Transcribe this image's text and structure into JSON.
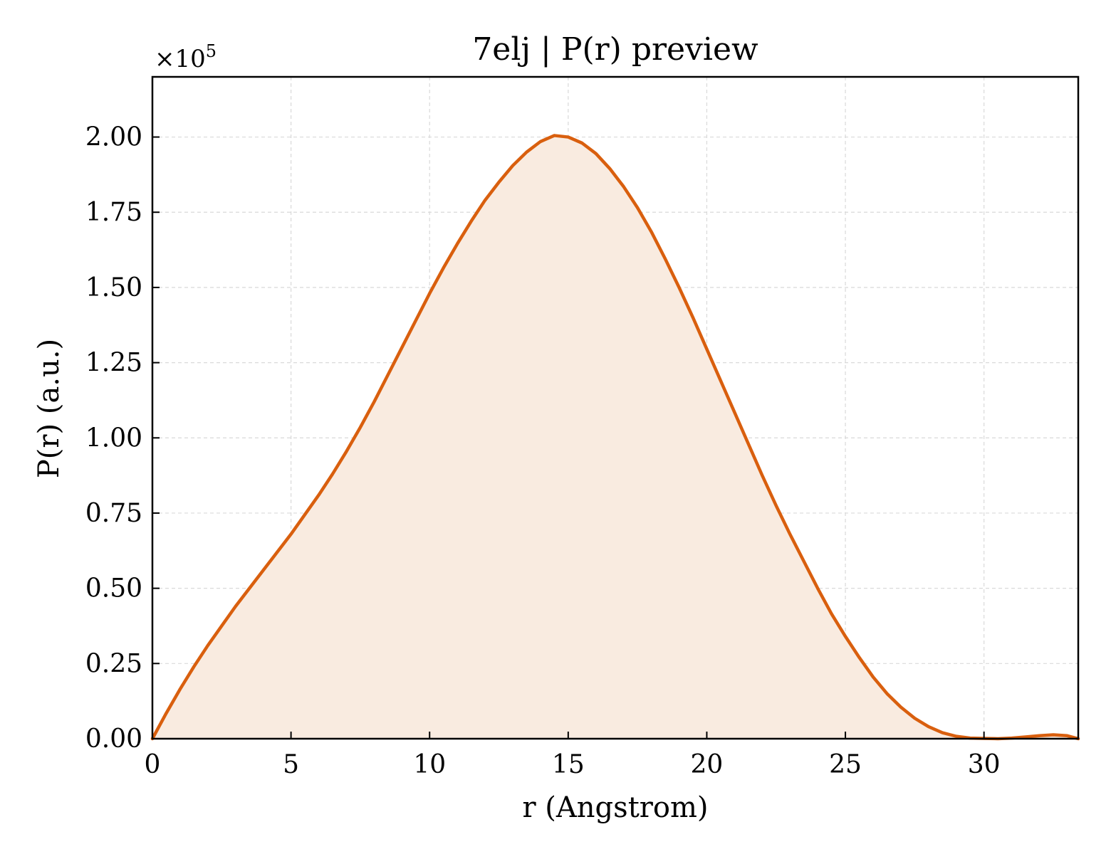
{
  "chart_data": {
    "type": "area",
    "title": "7elj | P(r) preview",
    "xlabel": "r (Angstrom)",
    "ylabel": "P(r) (a.u.)",
    "y_multiplier": "×10",
    "y_multiplier_exp": "5",
    "xlim": [
      0,
      33.4
    ],
    "ylim": [
      0,
      2.2
    ],
    "x_ticks": [
      {
        "value": 0,
        "label": "0"
      },
      {
        "value": 5,
        "label": "5"
      },
      {
        "value": 10,
        "label": "10"
      },
      {
        "value": 15,
        "label": "15"
      },
      {
        "value": 20,
        "label": "20"
      },
      {
        "value": 25,
        "label": "25"
      },
      {
        "value": 30,
        "label": "30"
      }
    ],
    "y_ticks": [
      {
        "value": 0.0,
        "label": "0.00"
      },
      {
        "value": 0.25,
        "label": "0.25"
      },
      {
        "value": 0.5,
        "label": "0.50"
      },
      {
        "value": 0.75,
        "label": "0.75"
      },
      {
        "value": 1.0,
        "label": "1.00"
      },
      {
        "value": 1.25,
        "label": "1.25"
      },
      {
        "value": 1.5,
        "label": "1.50"
      },
      {
        "value": 1.75,
        "label": "1.75"
      },
      {
        "value": 2.0,
        "label": "2.00"
      }
    ],
    "grid": true,
    "colors": {
      "line": "#d95f0e",
      "fill": "#f9ebe0",
      "grid": "#d9d9d9"
    },
    "series": [
      {
        "x": [
          0,
          0.5,
          1,
          1.5,
          2,
          2.5,
          3,
          3.5,
          4,
          4.5,
          5,
          5.5,
          6,
          6.5,
          7,
          7.5,
          8,
          8.5,
          9,
          9.5,
          10,
          10.5,
          11,
          11.5,
          12,
          12.5,
          13,
          13.5,
          14,
          14.5,
          15,
          15.5,
          16,
          16.5,
          17,
          17.5,
          18,
          18.5,
          19,
          19.5,
          20,
          20.5,
          21,
          21.5,
          22,
          22.5,
          23,
          23.5,
          24,
          24.5,
          25,
          25.5,
          26,
          26.5,
          27,
          27.5,
          28,
          28.5,
          29,
          29.5,
          30,
          30.5,
          31,
          31.5,
          32,
          32.5,
          33,
          33.4
        ],
        "values": [
          0.0,
          0.085,
          0.165,
          0.24,
          0.31,
          0.375,
          0.44,
          0.5,
          0.56,
          0.62,
          0.68,
          0.745,
          0.81,
          0.88,
          0.955,
          1.035,
          1.12,
          1.21,
          1.3,
          1.39,
          1.48,
          1.565,
          1.645,
          1.72,
          1.79,
          1.85,
          1.905,
          1.95,
          1.985,
          2.005,
          2.0,
          1.98,
          1.945,
          1.895,
          1.835,
          1.765,
          1.685,
          1.595,
          1.5,
          1.4,
          1.295,
          1.19,
          1.085,
          0.98,
          0.875,
          0.775,
          0.68,
          0.59,
          0.5,
          0.415,
          0.34,
          0.27,
          0.205,
          0.15,
          0.105,
          0.068,
          0.04,
          0.02,
          0.008,
          0.002,
          0.001,
          0.0,
          0.002,
          0.006,
          0.01,
          0.013,
          0.01,
          0.0
        ]
      }
    ]
  }
}
